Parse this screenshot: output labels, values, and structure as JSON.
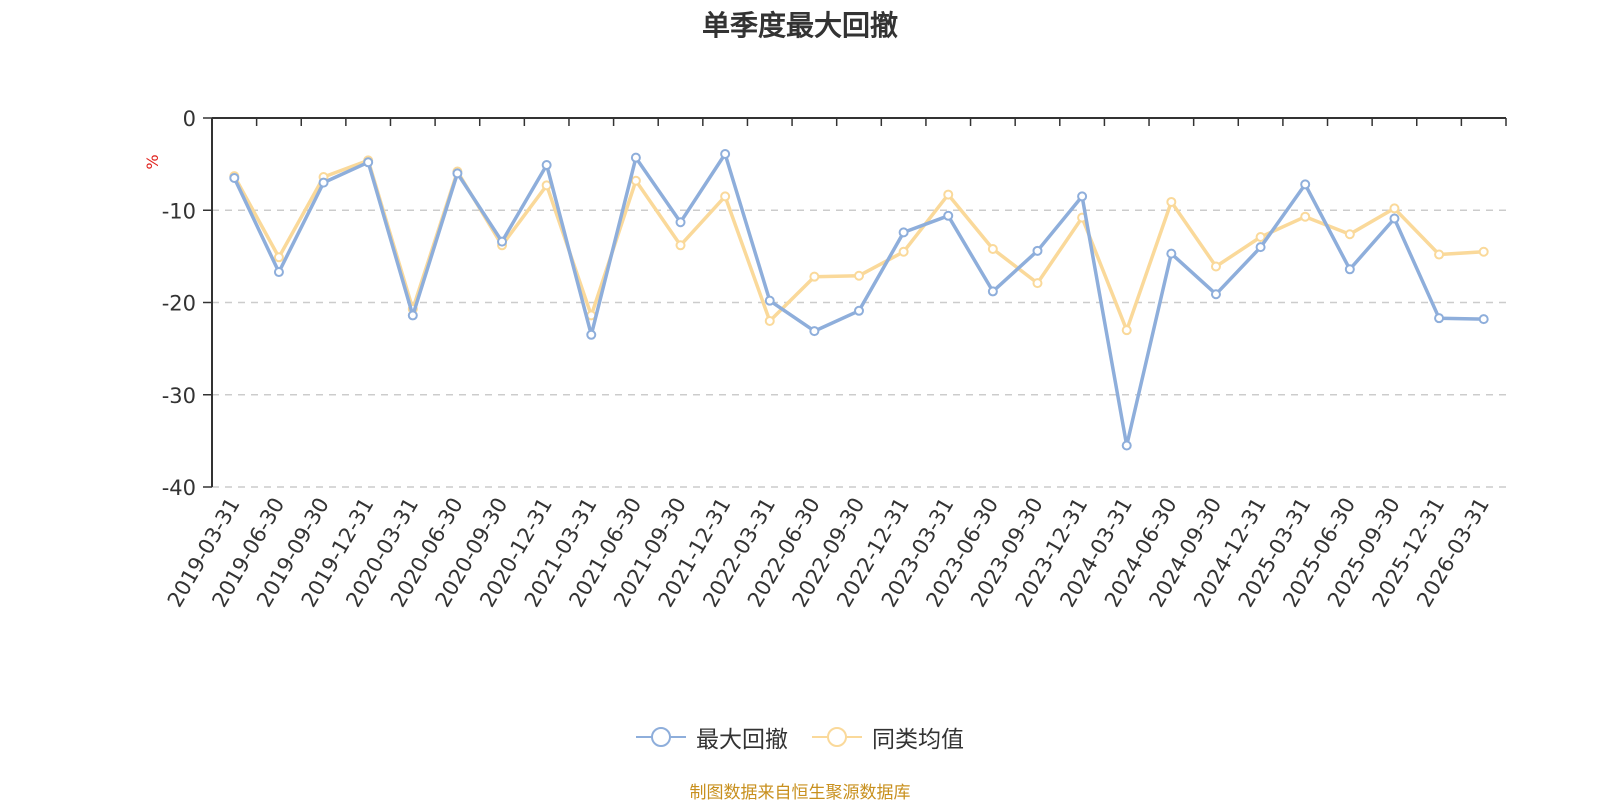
{
  "colors": {
    "series_max_drawdown": "#8eaedb",
    "series_peer_average": "#fad99a",
    "ylabel": "#e0201b",
    "footer": "#c8901e"
  },
  "chart_data": {
    "type": "line",
    "title": "单季度最大回撤",
    "ylabel": "%",
    "ylim": [
      -40,
      0
    ],
    "yticks": [
      0,
      -10,
      -20,
      -30,
      -40
    ],
    "grid": "horizontal dashed",
    "legend_position": "bottom-center",
    "categories": [
      "2019-03-31",
      "2019-06-30",
      "2019-09-30",
      "2019-12-31",
      "2020-03-31",
      "2020-06-30",
      "2020-09-30",
      "2020-12-31",
      "2021-03-31",
      "2021-06-30",
      "2021-09-30",
      "2021-12-31",
      "2022-03-31",
      "2022-06-30",
      "2022-09-30",
      "2022-12-31",
      "2023-03-31",
      "2023-06-30",
      "2023-09-30",
      "2023-12-31",
      "2024-03-31",
      "2024-06-30",
      "2024-09-30",
      "2024-12-31",
      "2025-03-31",
      "2025-06-30",
      "2025-09-30",
      "2025-12-31",
      "2026-03-31"
    ],
    "series": [
      {
        "name": "最大回撤",
        "values": [
          -6.5,
          -16.7,
          -7.0,
          -4.8,
          -21.4,
          -6.0,
          -13.4,
          -5.1,
          -23.5,
          -4.3,
          -11.3,
          -3.9,
          -19.8,
          -23.1,
          -20.9,
          -12.4,
          -10.6,
          -18.8,
          -14.4,
          -8.5,
          -35.5,
          -14.7,
          -19.1,
          -14.0,
          -7.2,
          -16.4,
          -10.9,
          -21.7,
          -21.8
        ]
      },
      {
        "name": "同类均值",
        "values": [
          -6.3,
          -15.1,
          -6.4,
          -4.6,
          -20.7,
          -5.8,
          -13.8,
          -7.3,
          -21.4,
          -6.8,
          -13.8,
          -8.5,
          -22.0,
          -17.2,
          -17.1,
          -14.5,
          -8.3,
          -14.2,
          -17.9,
          -10.8,
          -23.0,
          -9.1,
          -16.1,
          -12.9,
          -10.7,
          -12.6,
          -9.8,
          -14.8,
          -14.5
        ]
      }
    ]
  },
  "legend": {
    "item1": "最大回撤",
    "item2": "同类均值"
  },
  "footer": "制图数据来自恒生聚源数据库"
}
